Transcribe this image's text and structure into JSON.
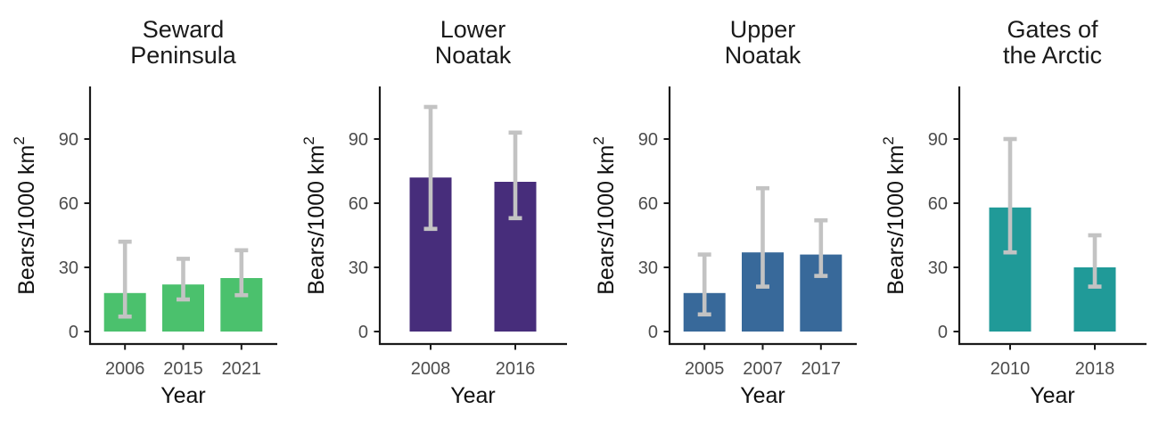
{
  "figure": {
    "xlabel": "Year",
    "ylabel_text": "Bears/1000  km",
    "ylabel_superscript": "2",
    "ytick_values": [
      0,
      30,
      60,
      90
    ],
    "colors": {
      "background": "#ffffff",
      "axis_line": "#1a1a1a",
      "tick_mark": "#1a1a1a",
      "tick_label": "#4d4d4d",
      "axis_title": "#111111",
      "panel_title": "#1a1a1a",
      "errorbar": "#c3c3c3"
    }
  },
  "chart_data": [
    {
      "type": "bar",
      "title_lines": [
        "Seward",
        "Peninsula"
      ],
      "xlabel": "Year",
      "ylabel": "Bears/1000 km²",
      "categories": [
        "2006",
        "2015",
        "2021"
      ],
      "values": [
        18,
        22,
        25
      ],
      "error_low": [
        7,
        15,
        17
      ],
      "error_high": [
        42,
        34,
        38
      ],
      "bar_color": "#4bc16d",
      "yticks": [
        0,
        30,
        60,
        90
      ],
      "ylim": [
        0,
        115
      ],
      "grid": false,
      "legend": false
    },
    {
      "type": "bar",
      "title_lines": [
        "Lower",
        "Noatak"
      ],
      "xlabel": "Year",
      "ylabel": "Bears/1000 km²",
      "categories": [
        "2008",
        "2016"
      ],
      "values": [
        72,
        70
      ],
      "error_low": [
        48,
        53
      ],
      "error_high": [
        105,
        93
      ],
      "bar_color": "#472d7b",
      "yticks": [
        0,
        30,
        60,
        90
      ],
      "ylim": [
        0,
        115
      ],
      "grid": false,
      "legend": false
    },
    {
      "type": "bar",
      "title_lines": [
        "Upper",
        "Noatak"
      ],
      "xlabel": "Year",
      "ylabel": "Bears/1000 km²",
      "categories": [
        "2005",
        "2007",
        "2017"
      ],
      "values": [
        18,
        37,
        36
      ],
      "error_low": [
        8,
        21,
        26
      ],
      "error_high": [
        36,
        67,
        52
      ],
      "bar_color": "#38699a",
      "yticks": [
        0,
        30,
        60,
        90
      ],
      "ylim": [
        0,
        115
      ],
      "grid": false,
      "legend": false
    },
    {
      "type": "bar",
      "title_lines": [
        "Gates of",
        "the Arctic"
      ],
      "xlabel": "Year",
      "ylabel": "Bears/1000 km²",
      "categories": [
        "2010",
        "2018"
      ],
      "values": [
        58,
        30
      ],
      "error_low": [
        37,
        21
      ],
      "error_high": [
        90,
        45
      ],
      "bar_color": "#209a98",
      "yticks": [
        0,
        30,
        60,
        90
      ],
      "ylim": [
        0,
        115
      ],
      "grid": false,
      "legend": false
    }
  ]
}
